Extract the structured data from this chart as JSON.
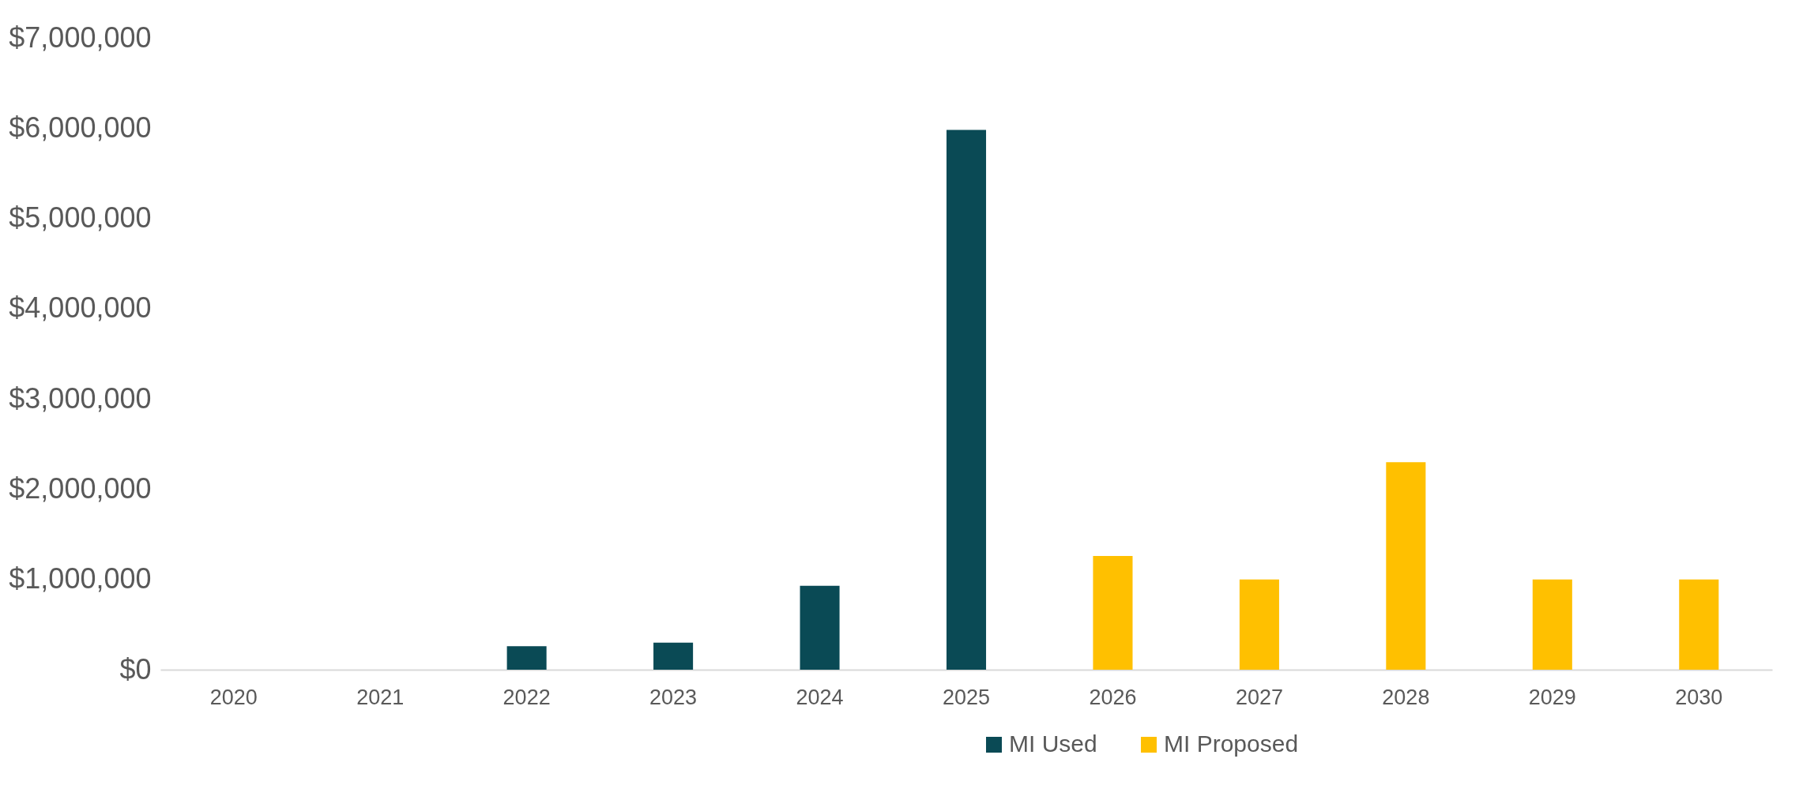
{
  "chart_data": {
    "type": "bar",
    "categories": [
      "2020",
      "2021",
      "2022",
      "2023",
      "2024",
      "2025",
      "2026",
      "2027",
      "2028",
      "2029",
      "2030"
    ],
    "series": [
      {
        "name": "MI Used",
        "color": "#0a4a55",
        "values": [
          0,
          0,
          260000,
          300000,
          930000,
          5980000,
          null,
          null,
          null,
          null,
          null
        ]
      },
      {
        "name": "MI Proposed",
        "color": "#ffc000",
        "values": [
          null,
          null,
          null,
          null,
          null,
          null,
          1260000,
          1000000,
          2300000,
          1000000,
          1000000
        ]
      }
    ],
    "ylim": [
      0,
      7000000
    ],
    "yticks": [
      {
        "value": 0,
        "label": "$0"
      },
      {
        "value": 1000000,
        "label": "$1,000,000"
      },
      {
        "value": 2000000,
        "label": "$2,000,000"
      },
      {
        "value": 3000000,
        "label": "$3,000,000"
      },
      {
        "value": 4000000,
        "label": "$4,000,000"
      },
      {
        "value": 5000000,
        "label": "$5,000,000"
      },
      {
        "value": 6000000,
        "label": "$6,000,000"
      },
      {
        "value": 7000000,
        "label": "$7,000,000"
      }
    ],
    "grid": false,
    "legend": "bottom"
  }
}
